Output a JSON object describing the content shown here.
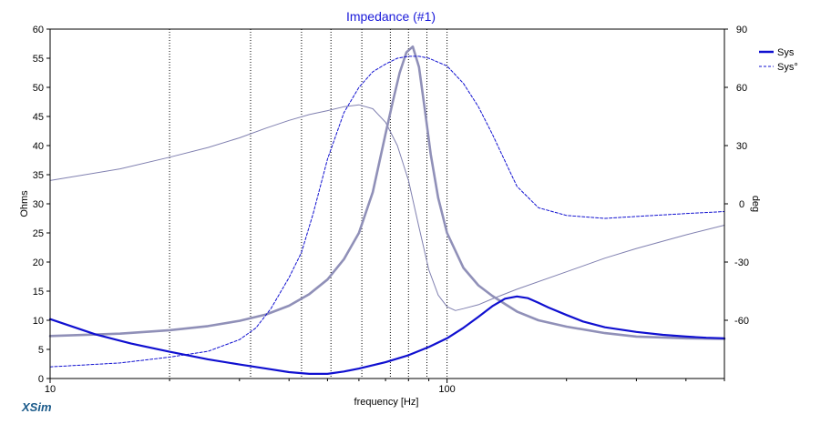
{
  "app": {
    "brand": "XSim"
  },
  "chart_data": {
    "type": "line",
    "title": "Impedance (#1)",
    "xlabel": "frequency [Hz]",
    "ylabel": "Ohms",
    "y2label": "deg",
    "xscale": "log",
    "xlim": [
      10,
      500
    ],
    "ylim": [
      0,
      60
    ],
    "y2lim": [
      -90,
      90
    ],
    "x_ticks": [
      10,
      100
    ],
    "y_ticks": [
      0,
      5,
      10,
      15,
      20,
      25,
      30,
      35,
      40,
      45,
      50,
      55,
      60
    ],
    "y2_ticks": [
      -60,
      -30,
      0,
      30,
      60,
      90
    ],
    "vertical_markers": [
      20,
      32,
      43,
      51,
      61,
      72,
      80,
      89,
      100
    ],
    "legend": [
      "Sys",
      "Sys°"
    ],
    "legend_placement": "top-right",
    "series": [
      {
        "name": "Sys",
        "axis": "left",
        "style": "solid-thick",
        "color": "#1010d0",
        "x": [
          10,
          13,
          16,
          20,
          25,
          30,
          35,
          40,
          45,
          50,
          55,
          60,
          70,
          80,
          90,
          100,
          110,
          120,
          130,
          140,
          150,
          160,
          170,
          180,
          200,
          220,
          250,
          300,
          350,
          400,
          450,
          500
        ],
        "values": [
          10.2,
          7.6,
          6.0,
          4.6,
          3.3,
          2.4,
          1.7,
          1.1,
          0.8,
          0.8,
          1.2,
          1.7,
          2.8,
          4.0,
          5.4,
          6.9,
          8.7,
          10.6,
          12.4,
          13.7,
          14.1,
          13.8,
          13.0,
          12.2,
          10.9,
          9.8,
          8.8,
          8.0,
          7.5,
          7.2,
          7.0,
          6.9
        ]
      },
      {
        "name": "Sys°",
        "axis": "right",
        "style": "dashed",
        "color": "#1010d0",
        "x": [
          10,
          15,
          20,
          25,
          30,
          33,
          36,
          40,
          43,
          46,
          50,
          55,
          60,
          65,
          70,
          75,
          80,
          85,
          90,
          100,
          110,
          120,
          130,
          140,
          150,
          170,
          200,
          250,
          300,
          400,
          500
        ],
        "values": [
          -84,
          -82,
          -79,
          -76,
          -70,
          -64,
          -54,
          -38,
          -25,
          -5,
          23,
          47,
          60,
          68,
          72,
          75,
          76,
          76,
          75,
          71,
          62,
          50,
          36,
          22,
          9,
          -2,
          -6,
          -7.5,
          -6.5,
          -5,
          -4
        ]
      },
      {
        "name": "",
        "axis": "left",
        "style": "solid-thick-grey",
        "color": "#9090b8",
        "x": [
          10,
          15,
          20,
          25,
          30,
          35,
          40,
          45,
          50,
          55,
          60,
          65,
          70,
          73,
          76,
          79,
          82,
          85,
          88,
          91,
          95,
          100,
          110,
          120,
          130,
          140,
          150,
          170,
          200,
          250,
          300,
          400,
          500
        ],
        "values": [
          7.3,
          7.7,
          8.3,
          9.0,
          9.9,
          11.0,
          12.5,
          14.5,
          17.0,
          20.5,
          25.0,
          32.0,
          42.0,
          47.5,
          52.5,
          56.0,
          57.0,
          53.5,
          46.0,
          38.5,
          31.0,
          25.0,
          19.0,
          16.0,
          14.2,
          12.8,
          11.5,
          10.0,
          8.9,
          7.8,
          7.2,
          6.9,
          6.8
        ]
      },
      {
        "name": "",
        "axis": "right",
        "style": "solid-thin-grey",
        "color": "#8080b0",
        "x": [
          10,
          15,
          20,
          25,
          30,
          35,
          40,
          45,
          50,
          55,
          60,
          65,
          70,
          75,
          80,
          85,
          90,
          95,
          100,
          105,
          110,
          120,
          130,
          150,
          200,
          250,
          300,
          400,
          500
        ],
        "values": [
          12,
          18,
          24,
          29,
          34,
          39,
          43,
          46,
          48,
          50,
          51,
          49,
          42,
          30,
          12,
          -12,
          -34,
          -47,
          -53,
          -55,
          -54,
          -52,
          -49,
          -44,
          -35,
          -28,
          -23,
          -16,
          -11
        ]
      }
    ]
  }
}
